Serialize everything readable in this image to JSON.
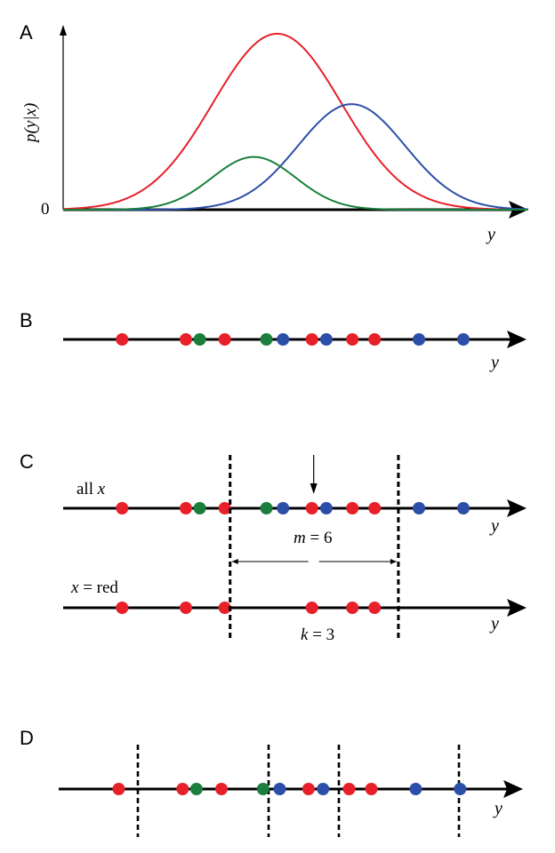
{
  "colors": {
    "red": "#e8202a",
    "green": "#1a7f3c",
    "blue": "#2b4fa8",
    "axis": "#000000"
  },
  "panel_a": {
    "label": "A",
    "y_axis_label": "p(y|x)",
    "zero_label": "0",
    "x_axis_label": "y",
    "curves": [
      {
        "color": "red",
        "mean": 0.46,
        "sd": 0.138,
        "peak": 1.0
      },
      {
        "color": "blue",
        "mean": 0.62,
        "sd": 0.115,
        "peak": 0.6
      },
      {
        "color": "green",
        "mean": 0.41,
        "sd": 0.09,
        "peak": 0.3
      }
    ]
  },
  "panel_b": {
    "label": "B",
    "x_axis_label": "y",
    "points": [
      {
        "pos": 0.22,
        "color": "red"
      },
      {
        "pos": 0.335,
        "color": "red"
      },
      {
        "pos": 0.36,
        "color": "green"
      },
      {
        "pos": 0.405,
        "color": "red"
      },
      {
        "pos": 0.48,
        "color": "green"
      },
      {
        "pos": 0.51,
        "color": "blue"
      },
      {
        "pos": 0.562,
        "color": "red"
      },
      {
        "pos": 0.588,
        "color": "blue"
      },
      {
        "pos": 0.635,
        "color": "red"
      },
      {
        "pos": 0.675,
        "color": "red"
      },
      {
        "pos": 0.755,
        "color": "blue"
      },
      {
        "pos": 0.835,
        "color": "blue"
      }
    ]
  },
  "panel_c": {
    "label": "C",
    "row_all_label_prefix": "all ",
    "row_all_label_var": "x",
    "row_red_label_var": "x",
    "row_red_label_suffix": " = red",
    "x_axis_label": "y",
    "m_var": "m",
    "m_value": " = 6",
    "k_var": "k",
    "k_value": " = 3",
    "points_all": [
      {
        "pos": 0.22,
        "color": "red"
      },
      {
        "pos": 0.335,
        "color": "red"
      },
      {
        "pos": 0.36,
        "color": "green"
      },
      {
        "pos": 0.405,
        "color": "red"
      },
      {
        "pos": 0.48,
        "color": "green"
      },
      {
        "pos": 0.51,
        "color": "blue"
      },
      {
        "pos": 0.562,
        "color": "red"
      },
      {
        "pos": 0.588,
        "color": "blue"
      },
      {
        "pos": 0.635,
        "color": "red"
      },
      {
        "pos": 0.675,
        "color": "red"
      },
      {
        "pos": 0.755,
        "color": "blue"
      },
      {
        "pos": 0.835,
        "color": "blue"
      }
    ],
    "points_red": [
      {
        "pos": 0.22,
        "color": "red"
      },
      {
        "pos": 0.335,
        "color": "red"
      },
      {
        "pos": 0.405,
        "color": "red"
      },
      {
        "pos": 0.562,
        "color": "red"
      },
      {
        "pos": 0.635,
        "color": "red"
      },
      {
        "pos": 0.675,
        "color": "red"
      }
    ],
    "window_left": 0.405,
    "window_center": 0.562,
    "window_right": 0.705
  },
  "panel_d": {
    "label": "D",
    "x_axis_label": "y",
    "points": [
      {
        "pos": 0.22,
        "color": "red"
      },
      {
        "pos": 0.335,
        "color": "red"
      },
      {
        "pos": 0.36,
        "color": "green"
      },
      {
        "pos": 0.405,
        "color": "red"
      },
      {
        "pos": 0.48,
        "color": "green"
      },
      {
        "pos": 0.51,
        "color": "blue"
      },
      {
        "pos": 0.562,
        "color": "red"
      },
      {
        "pos": 0.588,
        "color": "blue"
      },
      {
        "pos": 0.635,
        "color": "red"
      },
      {
        "pos": 0.675,
        "color": "red"
      },
      {
        "pos": 0.755,
        "color": "blue"
      },
      {
        "pos": 0.835,
        "color": "blue"
      }
    ],
    "bin_boundaries": [
      0.15,
      0.44,
      0.6,
      0.9
    ]
  }
}
